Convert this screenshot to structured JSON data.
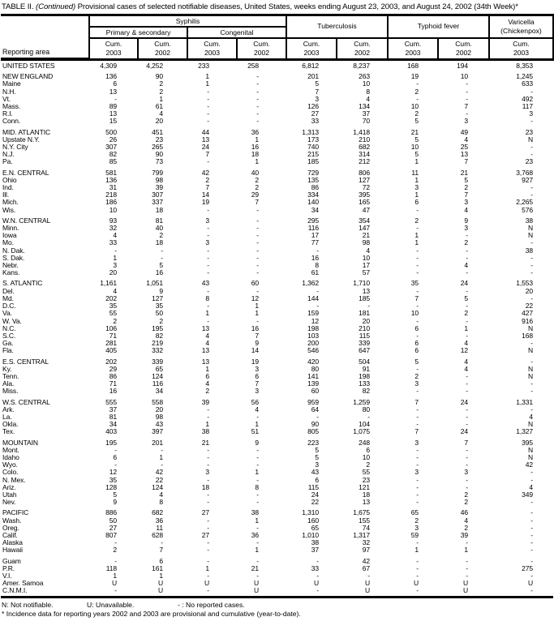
{
  "title": {
    "part1": "TABLE II. ",
    "continued": "(Continued)",
    "part2": " Provisional cases of selected notifiable diseases, United States, weeks ending August 23, 2003, and August 24, 2002 (34th Week)*"
  },
  "header": {
    "reporting_area": "Reporting area",
    "syphilis": "Syphilis",
    "primary_secondary": "Primary & secondary",
    "congenital": "Congenital",
    "tuberculosis": "Tuberculosis",
    "typhoid_fever": "Typhoid fever",
    "varicella_line1": "Varicella",
    "varicella_line2": "(Chickenpox)",
    "cum_columns": [
      {
        "name": "syphilis-ps-cum-2003",
        "line1": "Cum.",
        "line2": "2003"
      },
      {
        "name": "syphilis-ps-cum-2002",
        "line1": "Cum.",
        "line2": "2002"
      },
      {
        "name": "syphilis-congenital-cum-2003",
        "line1": "Cum.",
        "line2": "2003"
      },
      {
        "name": "syphilis-congenital-cum-2002",
        "line1": "Cum.",
        "line2": "2002"
      },
      {
        "name": "tuberculosis-cum-2003",
        "line1": "Cum.",
        "line2": "2003"
      },
      {
        "name": "tuberculosis-cum-2002",
        "line1": "Cum.",
        "line2": "2002"
      },
      {
        "name": "typhoid-cum-2003",
        "line1": "Cum.",
        "line2": "2003"
      },
      {
        "name": "typhoid-cum-2002",
        "line1": "Cum.",
        "line2": "2002"
      },
      {
        "name": "varicella-cum-2003",
        "line1": "Cum.",
        "line2": "2003"
      }
    ]
  },
  "table": {
    "sections": [
      {
        "name": "united-states",
        "rows": [
          [
            "UNITED STATES",
            "4,309",
            "4,252",
            "233",
            "258",
            "6,812",
            "8,237",
            "168",
            "194",
            "8,353"
          ]
        ]
      },
      {
        "name": "new-england",
        "rows": [
          [
            "NEW ENGLAND",
            "136",
            "90",
            "1",
            "-",
            "201",
            "263",
            "19",
            "10",
            "1,245"
          ],
          [
            "Maine",
            "6",
            "2",
            "1",
            "-",
            "5",
            "10",
            "-",
            "-",
            "633"
          ],
          [
            "N.H.",
            "13",
            "2",
            "-",
            "-",
            "7",
            "8",
            "2",
            "-",
            "-"
          ],
          [
            "Vt.",
            "-",
            "1",
            "-",
            "-",
            "3",
            "4",
            "-",
            "-",
            "492"
          ],
          [
            "Mass.",
            "89",
            "61",
            "-",
            "-",
            "126",
            "134",
            "10",
            "7",
            "117"
          ],
          [
            "R.I.",
            "13",
            "4",
            "-",
            "-",
            "27",
            "37",
            "2",
            "-",
            "3"
          ],
          [
            "Conn.",
            "15",
            "20",
            "-",
            "-",
            "33",
            "70",
            "5",
            "3",
            "-"
          ]
        ]
      },
      {
        "name": "mid-atlantic",
        "rows": [
          [
            "MID. ATLANTIC",
            "500",
            "451",
            "44",
            "36",
            "1,313",
            "1,418",
            "21",
            "49",
            "23"
          ],
          [
            "Upstate N.Y.",
            "26",
            "23",
            "13",
            "1",
            "173",
            "210",
            "5",
            "4",
            "N"
          ],
          [
            "N.Y. City",
            "307",
            "265",
            "24",
            "16",
            "740",
            "682",
            "10",
            "25",
            "-"
          ],
          [
            "N.J.",
            "82",
            "90",
            "7",
            "18",
            "215",
            "314",
            "5",
            "13",
            "-"
          ],
          [
            "Pa.",
            "85",
            "73",
            "-",
            "1",
            "185",
            "212",
            "1",
            "7",
            "23"
          ]
        ]
      },
      {
        "name": "en-central",
        "rows": [
          [
            "E.N. CENTRAL",
            "581",
            "799",
            "42",
            "40",
            "729",
            "806",
            "11",
            "21",
            "3,768"
          ],
          [
            "Ohio",
            "136",
            "98",
            "2",
            "2",
            "135",
            "127",
            "1",
            "5",
            "927"
          ],
          [
            "Ind.",
            "31",
            "39",
            "7",
            "2",
            "86",
            "72",
            "3",
            "2",
            "-"
          ],
          [
            "Ill.",
            "218",
            "307",
            "14",
            "29",
            "334",
            "395",
            "1",
            "7",
            "-"
          ],
          [
            "Mich.",
            "186",
            "337",
            "19",
            "7",
            "140",
            "165",
            "6",
            "3",
            "2,265"
          ],
          [
            "Wis.",
            "10",
            "18",
            "-",
            "-",
            "34",
            "47",
            "-",
            "4",
            "576"
          ]
        ]
      },
      {
        "name": "wn-central",
        "rows": [
          [
            "W.N. CENTRAL",
            "93",
            "81",
            "3",
            "-",
            "295",
            "354",
            "2",
            "9",
            "38"
          ],
          [
            "Minn.",
            "32",
            "40",
            "-",
            "-",
            "116",
            "147",
            "-",
            "3",
            "N"
          ],
          [
            "Iowa",
            "4",
            "2",
            "-",
            "-",
            "17",
            "21",
            "1",
            "-",
            "N"
          ],
          [
            "Mo.",
            "33",
            "18",
            "3",
            "-",
            "77",
            "98",
            "1",
            "2",
            "-"
          ],
          [
            "N. Dak.",
            "-",
            "-",
            "-",
            "-",
            "-",
            "4",
            "-",
            "-",
            "38"
          ],
          [
            "S. Dak.",
            "1",
            "-",
            "-",
            "-",
            "16",
            "10",
            "-",
            "-",
            "-"
          ],
          [
            "Nebr.",
            "3",
            "5",
            "-",
            "-",
            "8",
            "17",
            "-",
            "4",
            "-"
          ],
          [
            "Kans.",
            "20",
            "16",
            "-",
            "-",
            "61",
            "57",
            "-",
            "-",
            "-"
          ]
        ]
      },
      {
        "name": "s-atlantic",
        "rows": [
          [
            "S. ATLANTIC",
            "1,161",
            "1,051",
            "43",
            "60",
            "1,362",
            "1,710",
            "35",
            "24",
            "1,553"
          ],
          [
            "Del.",
            "4",
            "9",
            "-",
            "-",
            "-",
            "13",
            "-",
            "-",
            "20"
          ],
          [
            "Md.",
            "202",
            "127",
            "8",
            "12",
            "144",
            "185",
            "7",
            "5",
            "-"
          ],
          [
            "D.C.",
            "35",
            "35",
            "-",
            "1",
            "-",
            "-",
            "-",
            "-",
            "22"
          ],
          [
            "Va.",
            "55",
            "50",
            "1",
            "1",
            "159",
            "181",
            "10",
            "2",
            "427"
          ],
          [
            "W. Va.",
            "2",
            "2",
            "-",
            "-",
            "12",
            "20",
            "-",
            "-",
            "916"
          ],
          [
            "N.C.",
            "106",
            "195",
            "13",
            "16",
            "198",
            "210",
            "6",
            "1",
            "N"
          ],
          [
            "S.C.",
            "71",
            "82",
            "4",
            "7",
            "103",
            "115",
            "-",
            "-",
            "168"
          ],
          [
            "Ga.",
            "281",
            "219",
            "4",
            "9",
            "200",
            "339",
            "6",
            "4",
            "-"
          ],
          [
            "Fla.",
            "405",
            "332",
            "13",
            "14",
            "546",
            "647",
            "6",
            "12",
            "N"
          ]
        ]
      },
      {
        "name": "es-central",
        "rows": [
          [
            "E.S. CENTRAL",
            "202",
            "339",
            "13",
            "19",
            "420",
            "504",
            "5",
            "4",
            "-"
          ],
          [
            "Ky.",
            "29",
            "65",
            "1",
            "3",
            "80",
            "91",
            "-",
            "4",
            "N"
          ],
          [
            "Tenn.",
            "86",
            "124",
            "6",
            "6",
            "141",
            "198",
            "2",
            "-",
            "N"
          ],
          [
            "Ala.",
            "71",
            "116",
            "4",
            "7",
            "139",
            "133",
            "3",
            "-",
            "-"
          ],
          [
            "Miss.",
            "16",
            "34",
            "2",
            "3",
            "60",
            "82",
            "-",
            "-",
            "-"
          ]
        ]
      },
      {
        "name": "ws-central",
        "rows": [
          [
            "W.S. CENTRAL",
            "555",
            "558",
            "39",
            "56",
            "959",
            "1,259",
            "7",
            "24",
            "1,331"
          ],
          [
            "Ark.",
            "37",
            "20",
            "-",
            "4",
            "64",
            "80",
            "-",
            "-",
            "-"
          ],
          [
            "La.",
            "81",
            "98",
            "-",
            "-",
            "-",
            "-",
            "-",
            "-",
            "4"
          ],
          [
            "Okla.",
            "34",
            "43",
            "1",
            "1",
            "90",
            "104",
            "-",
            "-",
            "N"
          ],
          [
            "Tex.",
            "403",
            "397",
            "38",
            "51",
            "805",
            "1,075",
            "7",
            "24",
            "1,327"
          ]
        ]
      },
      {
        "name": "mountain",
        "rows": [
          [
            "MOUNTAIN",
            "195",
            "201",
            "21",
            "9",
            "223",
            "248",
            "3",
            "7",
            "395"
          ],
          [
            "Mont.",
            "-",
            "-",
            "-",
            "-",
            "5",
            "6",
            "-",
            "-",
            "N"
          ],
          [
            "Idaho",
            "6",
            "1",
            "-",
            "-",
            "5",
            "10",
            "-",
            "-",
            "N"
          ],
          [
            "Wyo.",
            "-",
            "-",
            "-",
            "-",
            "3",
            "2",
            "-",
            "-",
            "42"
          ],
          [
            "Colo.",
            "12",
            "42",
            "3",
            "1",
            "43",
            "55",
            "3",
            "3",
            "-"
          ],
          [
            "N. Mex.",
            "35",
            "22",
            "-",
            "-",
            "6",
            "23",
            "-",
            "-",
            "-"
          ],
          [
            "Ariz.",
            "128",
            "124",
            "18",
            "8",
            "115",
            "121",
            "-",
            "-",
            "4"
          ],
          [
            "Utah",
            "5",
            "4",
            "-",
            "-",
            "24",
            "18",
            "-",
            "2",
            "349"
          ],
          [
            "Nev.",
            "9",
            "8",
            "-",
            "-",
            "22",
            "13",
            "-",
            "2",
            "-"
          ]
        ]
      },
      {
        "name": "pacific",
        "rows": [
          [
            "PACIFIC",
            "886",
            "682",
            "27",
            "38",
            "1,310",
            "1,675",
            "65",
            "46",
            "-"
          ],
          [
            "Wash.",
            "50",
            "36",
            "-",
            "1",
            "160",
            "155",
            "2",
            "4",
            "-"
          ],
          [
            "Oreg.",
            "27",
            "11",
            "-",
            "-",
            "65",
            "74",
            "3",
            "2",
            "-"
          ],
          [
            "Calif.",
            "807",
            "628",
            "27",
            "36",
            "1,010",
            "1,317",
            "59",
            "39",
            "-"
          ],
          [
            "Alaska",
            "-",
            "-",
            "-",
            "-",
            "38",
            "32",
            "-",
            "-",
            "-"
          ],
          [
            "Hawaii",
            "2",
            "7",
            "-",
            "1",
            "37",
            "97",
            "1",
            "1",
            "-"
          ]
        ]
      },
      {
        "name": "territories",
        "rows": [
          [
            "Guam",
            "-",
            "6",
            "-",
            "-",
            "-",
            "42",
            "-",
            "-",
            "-"
          ],
          [
            "P.R.",
            "118",
            "161",
            "1",
            "21",
            "33",
            "67",
            "-",
            "-",
            "275"
          ],
          [
            "V.I.",
            "1",
            "1",
            "-",
            "-",
            "-",
            "-",
            "-",
            "-",
            "-"
          ],
          [
            "Amer. Samoa",
            "U",
            "U",
            "U",
            "U",
            "U",
            "U",
            "U",
            "U",
            "U"
          ],
          [
            "C.N.M.I.",
            "-",
            "U",
            "-",
            "U",
            "-",
            "U",
            "-",
            "U",
            "-"
          ]
        ]
      }
    ]
  },
  "footnotes": {
    "n": "N: Not notifiable.",
    "u": "U: Unavailable.",
    "dash": "- : No reported cases.",
    "star": "* Incidence data for reporting years 2002 and 2003 are provisional and cumulative (year-to-date)."
  }
}
